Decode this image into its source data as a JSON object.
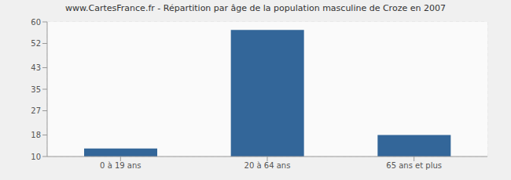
{
  "chart_data": {
    "type": "bar",
    "title": "www.CartesFrance.fr - Répartition par âge de la population masculine de Croze en 2007",
    "categories": [
      "0 à 19 ans",
      "20 à 64 ans",
      "65 ans et plus"
    ],
    "values": [
      13,
      57,
      18
    ],
    "color": "#336699",
    "ylim": [
      10,
      60
    ],
    "yticks": [
      10,
      18,
      27,
      35,
      43,
      52,
      60
    ],
    "grid": true
  }
}
